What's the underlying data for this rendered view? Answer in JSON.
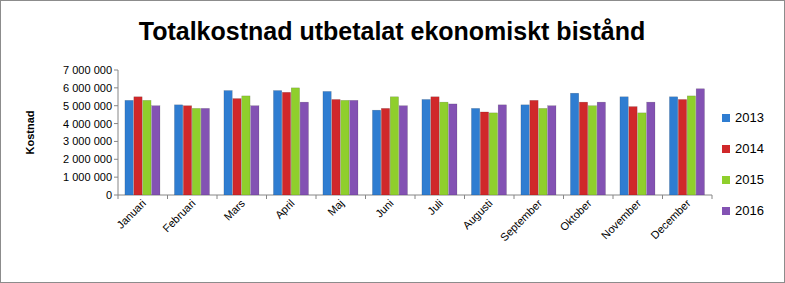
{
  "chart_data": {
    "type": "bar",
    "title": "Totalkostnad utbetalat ekonomiskt bistånd",
    "y_label": "Kostnad",
    "categories": [
      "Januari",
      "Februari",
      "Mars",
      "April",
      "Maj",
      "Juni",
      "Juli",
      "Augusti",
      "September",
      "Oktober",
      "November",
      "December"
    ],
    "series": [
      {
        "name": "2013",
        "color": "#2f7dd1",
        "values": [
          5300000,
          5050000,
          5850000,
          5850000,
          5800000,
          4750000,
          5350000,
          4850000,
          5050000,
          5700000,
          5500000,
          5500000
        ]
      },
      {
        "name": "2014",
        "color": "#d0282a",
        "values": [
          5500000,
          5000000,
          5400000,
          5750000,
          5350000,
          4850000,
          5500000,
          4650000,
          5300000,
          5200000,
          4950000,
          5350000
        ]
      },
      {
        "name": "2015",
        "color": "#8fcf2c",
        "values": [
          5300000,
          4850000,
          5550000,
          6000000,
          5300000,
          5500000,
          5200000,
          4600000,
          4850000,
          5000000,
          4600000,
          5550000
        ]
      },
      {
        "name": "2016",
        "color": "#8352b3",
        "values": [
          5000000,
          4850000,
          5000000,
          5200000,
          5300000,
          5000000,
          5100000,
          5050000,
          5000000,
          5200000,
          5200000,
          5950000
        ]
      }
    ],
    "ylim": [
      0,
      7000000
    ],
    "yticks": [
      0,
      {
        "value": 1000000,
        "label": "1 000 000"
      },
      {
        "value": 2000000,
        "label": "2 000 000"
      },
      {
        "value": 3000000,
        "label": "3 000 000"
      },
      {
        "value": 4000000,
        "label": "4 000 000"
      },
      {
        "value": 5000000,
        "label": "5 000 000"
      },
      {
        "value": 6000000,
        "label": "6 000 000"
      },
      {
        "value": 7000000,
        "label": "7 000 000"
      }
    ],
    "grid": false,
    "legend": "right"
  }
}
